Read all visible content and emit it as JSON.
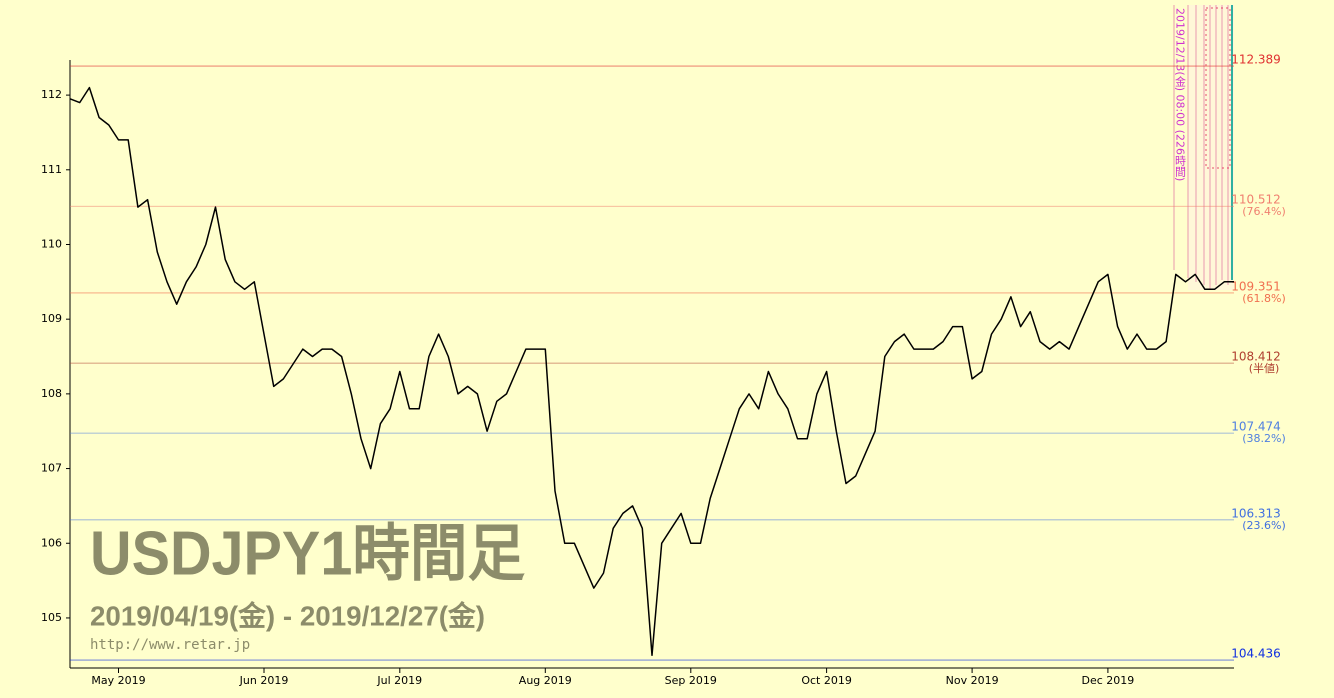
{
  "chart_data": {
    "type": "line",
    "title": "USDJPY1時間足",
    "subtitle": "2019/04/19(金) - 2019/12/27(金)",
    "source": "http://www.retar.jp",
    "categories": [
      null,
      null,
      null,
      null,
      null,
      "May 2019",
      null,
      null,
      null,
      null,
      null,
      null,
      null,
      null,
      null,
      null,
      null,
      null,
      null,
      null,
      "Jun 2019",
      null,
      null,
      null,
      null,
      null,
      null,
      null,
      null,
      null,
      null,
      null,
      null,
      null,
      "Jul 2019",
      null,
      null,
      null,
      null,
      null,
      null,
      null,
      null,
      null,
      null,
      null,
      null,
      null,
      null,
      "Aug 2019",
      null,
      null,
      null,
      null,
      null,
      null,
      null,
      null,
      null,
      null,
      null,
      null,
      null,
      null,
      "Sep 2019",
      null,
      null,
      null,
      null,
      null,
      null,
      null,
      null,
      null,
      null,
      null,
      null,
      null,
      "Oct 2019",
      null,
      null,
      null,
      null,
      null,
      null,
      null,
      null,
      null,
      null,
      null,
      null,
      null,
      null,
      "Nov 2019",
      null,
      null,
      null,
      null,
      null,
      null,
      null,
      null,
      null,
      null,
      null,
      null,
      null,
      "Dec 2019",
      null,
      null,
      null,
      null,
      null,
      null,
      null,
      null,
      null,
      null,
      null,
      null,
      null
    ],
    "series": [
      {
        "color": "#000000",
        "values": [
          111.95,
          111.9,
          112.1,
          111.7,
          111.6,
          111.4,
          111.4,
          110.5,
          110.6,
          109.9,
          109.5,
          109.2,
          109.5,
          109.7,
          110.0,
          110.5,
          109.8,
          109.5,
          109.4,
          109.5,
          108.8,
          108.1,
          108.2,
          108.4,
          108.6,
          108.5,
          108.6,
          108.6,
          108.5,
          108.0,
          107.4,
          107.0,
          107.6,
          107.8,
          108.3,
          107.8,
          107.8,
          108.5,
          108.8,
          108.5,
          108.0,
          108.1,
          108.0,
          107.5,
          107.9,
          108.0,
          108.3,
          108.6,
          108.6,
          108.6,
          106.7,
          106.0,
          106.0,
          105.7,
          105.4,
          105.6,
          106.2,
          106.4,
          106.5,
          106.2,
          104.5,
          106.0,
          106.2,
          106.4,
          106.0,
          106.0,
          106.6,
          107.0,
          107.4,
          107.8,
          108.0,
          107.8,
          108.3,
          108.0,
          107.8,
          107.4,
          107.4,
          108.0,
          108.3,
          107.5,
          106.8,
          106.9,
          107.2,
          107.5,
          108.5,
          108.7,
          108.8,
          108.6,
          108.6,
          108.6,
          108.7,
          108.9,
          108.9,
          108.2,
          108.3,
          108.8,
          109.0,
          109.3,
          108.9,
          109.1,
          108.7,
          108.6,
          108.7,
          108.6,
          108.9,
          109.2,
          109.5,
          109.6,
          108.9,
          108.6,
          108.8,
          108.6,
          108.6,
          108.7,
          109.6,
          109.5,
          109.6,
          109.4,
          109.4,
          109.5,
          109.5
        ]
      }
    ],
    "ylim": [
      104.37,
      112.47
    ],
    "yticks": [
      105,
      106,
      107,
      108,
      109,
      110,
      111,
      112
    ],
    "levels": [
      {
        "value": 112.389,
        "label": "112.389",
        "color": "#e03030"
      },
      {
        "value": 110.512,
        "label": "110.512",
        "ratio": "(76.4%)",
        "color": "#f08070"
      },
      {
        "value": 109.351,
        "label": "109.351",
        "ratio": "(61.8%)",
        "color": "#f07050"
      },
      {
        "value": 108.412,
        "label": "108.412",
        "ratio": "(半値)",
        "color": "#b04030"
      },
      {
        "value": 107.474,
        "label": "107.474",
        "ratio": "(38.2%)",
        "color": "#5080e0"
      },
      {
        "value": 106.313,
        "label": "106.313",
        "ratio": "(23.6%)",
        "color": "#4070e0"
      },
      {
        "value": 104.436,
        "label": "104.436",
        "color": "#1030e0"
      }
    ],
    "annotation": "2019/12/13(金) 08:00 (226時間)"
  }
}
